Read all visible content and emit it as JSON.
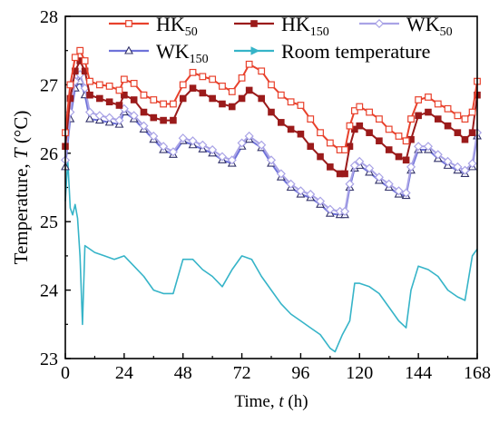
{
  "chart_data": {
    "type": "line",
    "xlabel_prefix": "Time, ",
    "xlabel_var": "t",
    "xlabel_suffix": " (h)",
    "ylabel_prefix": "Temperature, ",
    "ylabel_var": "T",
    "ylabel_suffix": " (°C)",
    "xlim": [
      0,
      168
    ],
    "ylim": [
      23,
      28
    ],
    "xticks": [
      0,
      24,
      48,
      72,
      96,
      120,
      144,
      168
    ],
    "yticks": [
      23,
      24,
      25,
      26,
      27,
      28
    ],
    "legend_position": "top",
    "series": [
      {
        "name": "HK",
        "subscript": "50",
        "color": "#e8412c",
        "marker": "open-square",
        "points": [
          [
            0,
            26.3
          ],
          [
            2,
            27.0
          ],
          [
            4,
            27.4
          ],
          [
            6,
            27.5
          ],
          [
            8,
            27.35
          ],
          [
            10,
            27.05
          ],
          [
            14,
            27.0
          ],
          [
            18,
            26.98
          ],
          [
            22,
            26.92
          ],
          [
            24,
            27.08
          ],
          [
            28,
            27.02
          ],
          [
            32,
            26.85
          ],
          [
            36,
            26.78
          ],
          [
            40,
            26.72
          ],
          [
            44,
            26.72
          ],
          [
            48,
            27.0
          ],
          [
            52,
            27.18
          ],
          [
            56,
            27.12
          ],
          [
            60,
            27.08
          ],
          [
            64,
            26.98
          ],
          [
            68,
            26.9
          ],
          [
            72,
            27.1
          ],
          [
            75,
            27.3
          ],
          [
            80,
            27.2
          ],
          [
            84,
            27.0
          ],
          [
            88,
            26.85
          ],
          [
            92,
            26.75
          ],
          [
            96,
            26.7
          ],
          [
            100,
            26.5
          ],
          [
            104,
            26.3
          ],
          [
            108,
            26.15
          ],
          [
            112,
            26.05
          ],
          [
            114,
            26.05
          ],
          [
            116,
            26.4
          ],
          [
            118,
            26.62
          ],
          [
            120,
            26.68
          ],
          [
            124,
            26.6
          ],
          [
            128,
            26.5
          ],
          [
            132,
            26.35
          ],
          [
            136,
            26.25
          ],
          [
            139,
            26.18
          ],
          [
            141,
            26.5
          ],
          [
            144,
            26.78
          ],
          [
            148,
            26.82
          ],
          [
            152,
            26.72
          ],
          [
            156,
            26.65
          ],
          [
            160,
            26.55
          ],
          [
            163,
            26.5
          ],
          [
            166,
            26.6
          ],
          [
            168,
            27.05
          ]
        ]
      },
      {
        "name": "HK",
        "subscript": "150",
        "color": "#9b1b1b",
        "marker": "filled-square",
        "points": [
          [
            0,
            26.1
          ],
          [
            2,
            26.8
          ],
          [
            4,
            27.2
          ],
          [
            6,
            27.35
          ],
          [
            8,
            27.2
          ],
          [
            10,
            26.85
          ],
          [
            14,
            26.8
          ],
          [
            18,
            26.75
          ],
          [
            22,
            26.7
          ],
          [
            24,
            26.85
          ],
          [
            28,
            26.78
          ],
          [
            32,
            26.6
          ],
          [
            36,
            26.52
          ],
          [
            40,
            26.48
          ],
          [
            44,
            26.48
          ],
          [
            48,
            26.8
          ],
          [
            52,
            26.95
          ],
          [
            56,
            26.88
          ],
          [
            60,
            26.8
          ],
          [
            64,
            26.72
          ],
          [
            68,
            26.68
          ],
          [
            72,
            26.8
          ],
          [
            75,
            26.92
          ],
          [
            80,
            26.8
          ],
          [
            84,
            26.6
          ],
          [
            88,
            26.45
          ],
          [
            92,
            26.35
          ],
          [
            96,
            26.28
          ],
          [
            100,
            26.1
          ],
          [
            104,
            25.95
          ],
          [
            108,
            25.8
          ],
          [
            112,
            25.7
          ],
          [
            114,
            25.7
          ],
          [
            116,
            26.1
          ],
          [
            118,
            26.35
          ],
          [
            120,
            26.4
          ],
          [
            124,
            26.3
          ],
          [
            128,
            26.18
          ],
          [
            132,
            26.05
          ],
          [
            136,
            25.95
          ],
          [
            139,
            25.9
          ],
          [
            141,
            26.2
          ],
          [
            144,
            26.55
          ],
          [
            148,
            26.6
          ],
          [
            152,
            26.5
          ],
          [
            156,
            26.4
          ],
          [
            160,
            26.3
          ],
          [
            163,
            26.2
          ],
          [
            166,
            26.3
          ],
          [
            168,
            26.85
          ]
        ]
      },
      {
        "name": "WK",
        "subscript": "50",
        "color": "#a9a3e6",
        "marker": "open-diamond",
        "points": [
          [
            0,
            25.9
          ],
          [
            2,
            26.6
          ],
          [
            4,
            27.05
          ],
          [
            6,
            27.15
          ],
          [
            8,
            26.95
          ],
          [
            10,
            26.6
          ],
          [
            14,
            26.55
          ],
          [
            18,
            26.52
          ],
          [
            22,
            26.48
          ],
          [
            24,
            26.65
          ],
          [
            28,
            26.55
          ],
          [
            32,
            26.4
          ],
          [
            36,
            26.25
          ],
          [
            40,
            26.1
          ],
          [
            44,
            26.02
          ],
          [
            48,
            26.22
          ],
          [
            52,
            26.18
          ],
          [
            56,
            26.12
          ],
          [
            60,
            26.05
          ],
          [
            64,
            25.95
          ],
          [
            68,
            25.9
          ],
          [
            72,
            26.15
          ],
          [
            75,
            26.25
          ],
          [
            80,
            26.12
          ],
          [
            84,
            25.9
          ],
          [
            88,
            25.7
          ],
          [
            92,
            25.55
          ],
          [
            96,
            25.45
          ],
          [
            100,
            25.4
          ],
          [
            104,
            25.3
          ],
          [
            108,
            25.18
          ],
          [
            112,
            25.15
          ],
          [
            114,
            25.15
          ],
          [
            116,
            25.55
          ],
          [
            118,
            25.82
          ],
          [
            120,
            25.88
          ],
          [
            124,
            25.78
          ],
          [
            128,
            25.65
          ],
          [
            132,
            25.55
          ],
          [
            136,
            25.45
          ],
          [
            139,
            25.42
          ],
          [
            141,
            25.8
          ],
          [
            144,
            26.1
          ],
          [
            148,
            26.1
          ],
          [
            152,
            25.98
          ],
          [
            156,
            25.88
          ],
          [
            160,
            25.8
          ],
          [
            163,
            25.75
          ],
          [
            166,
            25.85
          ],
          [
            168,
            26.3
          ]
        ]
      },
      {
        "name": "WK",
        "subscript": "150",
        "color": "#6e72d9",
        "marker": "open-triangle",
        "points": [
          [
            0,
            25.8
          ],
          [
            2,
            26.5
          ],
          [
            4,
            26.95
          ],
          [
            6,
            27.05
          ],
          [
            8,
            26.85
          ],
          [
            10,
            26.5
          ],
          [
            14,
            26.48
          ],
          [
            18,
            26.45
          ],
          [
            22,
            26.42
          ],
          [
            24,
            26.6
          ],
          [
            28,
            26.5
          ],
          [
            32,
            26.35
          ],
          [
            36,
            26.2
          ],
          [
            40,
            26.05
          ],
          [
            44,
            25.98
          ],
          [
            48,
            26.18
          ],
          [
            52,
            26.12
          ],
          [
            56,
            26.06
          ],
          [
            60,
            26.0
          ],
          [
            64,
            25.9
          ],
          [
            68,
            25.85
          ],
          [
            72,
            26.1
          ],
          [
            75,
            26.2
          ],
          [
            80,
            26.08
          ],
          [
            84,
            25.85
          ],
          [
            88,
            25.65
          ],
          [
            92,
            25.5
          ],
          [
            96,
            25.4
          ],
          [
            100,
            25.35
          ],
          [
            104,
            25.25
          ],
          [
            108,
            25.12
          ],
          [
            112,
            25.1
          ],
          [
            114,
            25.1
          ],
          [
            116,
            25.5
          ],
          [
            118,
            25.78
          ],
          [
            120,
            25.82
          ],
          [
            124,
            25.72
          ],
          [
            128,
            25.6
          ],
          [
            132,
            25.5
          ],
          [
            136,
            25.4
          ],
          [
            139,
            25.38
          ],
          [
            141,
            25.75
          ],
          [
            144,
            26.05
          ],
          [
            148,
            26.05
          ],
          [
            152,
            25.92
          ],
          [
            156,
            25.82
          ],
          [
            160,
            25.75
          ],
          [
            163,
            25.7
          ],
          [
            166,
            25.8
          ],
          [
            168,
            26.25
          ]
        ]
      },
      {
        "name": "Room temperature",
        "color": "#36b4c8",
        "marker": "arrow",
        "points": [
          [
            0,
            25.3
          ],
          [
            1,
            25.9
          ],
          [
            2,
            25.2
          ],
          [
            3,
            25.1
          ],
          [
            4,
            25.25
          ],
          [
            5,
            25.05
          ],
          [
            6,
            24.5
          ],
          [
            7,
            23.5
          ],
          [
            8,
            24.65
          ],
          [
            10,
            24.6
          ],
          [
            12,
            24.55
          ],
          [
            16,
            24.5
          ],
          [
            20,
            24.45
          ],
          [
            24,
            24.5
          ],
          [
            28,
            24.35
          ],
          [
            32,
            24.2
          ],
          [
            36,
            24.0
          ],
          [
            40,
            23.95
          ],
          [
            44,
            23.95
          ],
          [
            46,
            24.2
          ],
          [
            48,
            24.45
          ],
          [
            52,
            24.45
          ],
          [
            56,
            24.3
          ],
          [
            60,
            24.2
          ],
          [
            64,
            24.05
          ],
          [
            68,
            24.3
          ],
          [
            72,
            24.5
          ],
          [
            76,
            24.45
          ],
          [
            80,
            24.2
          ],
          [
            84,
            24.0
          ],
          [
            88,
            23.8
          ],
          [
            92,
            23.65
          ],
          [
            96,
            23.55
          ],
          [
            100,
            23.45
          ],
          [
            104,
            23.35
          ],
          [
            108,
            23.15
          ],
          [
            110,
            23.1
          ],
          [
            113,
            23.35
          ],
          [
            116,
            23.55
          ],
          [
            118,
            24.1
          ],
          [
            120,
            24.1
          ],
          [
            124,
            24.05
          ],
          [
            128,
            23.95
          ],
          [
            132,
            23.75
          ],
          [
            136,
            23.55
          ],
          [
            139,
            23.45
          ],
          [
            141,
            24.0
          ],
          [
            144,
            24.35
          ],
          [
            148,
            24.3
          ],
          [
            152,
            24.2
          ],
          [
            156,
            24.0
          ],
          [
            160,
            23.9
          ],
          [
            163,
            23.85
          ],
          [
            166,
            24.5
          ],
          [
            168,
            24.6
          ]
        ]
      }
    ]
  }
}
